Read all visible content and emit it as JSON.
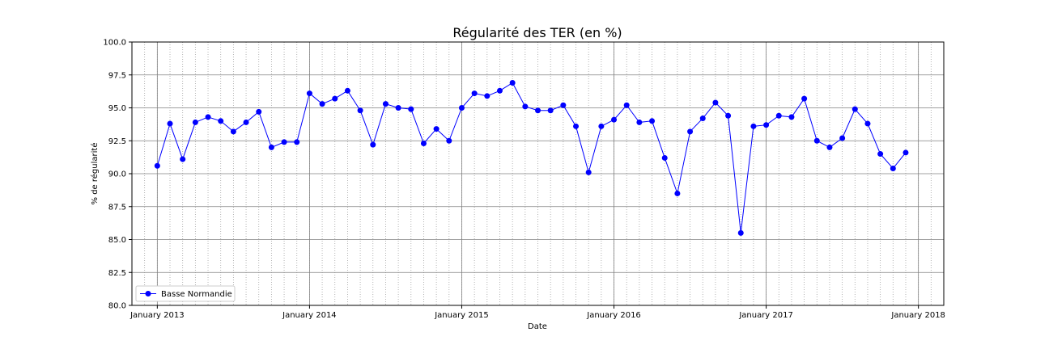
{
  "chart_data": {
    "type": "line",
    "title": "Régularité des TER (en %)",
    "xlabel": "Date",
    "ylabel": "% de régularité",
    "ylim": [
      80.0,
      100.0
    ],
    "xlim": [
      "2012-11",
      "2018-03"
    ],
    "yticks": [
      "80.0",
      "82.5",
      "85.0",
      "87.5",
      "90.0",
      "92.5",
      "95.0",
      "97.5",
      "100.0"
    ],
    "xticks": [
      {
        "date": "2013-01",
        "label": "January 2013"
      },
      {
        "date": "2014-01",
        "label": "January 2014"
      },
      {
        "date": "2015-01",
        "label": "January 2015"
      },
      {
        "date": "2016-01",
        "label": "January 2016"
      },
      {
        "date": "2017-01",
        "label": "January 2017"
      },
      {
        "date": "2018-01",
        "label": "January 2018"
      }
    ],
    "grid": true,
    "minor_grid": "monthly dotted vertical lines",
    "legend_position": "lower-left",
    "color": "#0000ff",
    "series": [
      {
        "name": "Basse Normandie",
        "x": [
          "2013-01",
          "2013-02",
          "2013-03",
          "2013-04",
          "2013-05",
          "2013-06",
          "2013-07",
          "2013-08",
          "2013-09",
          "2013-10",
          "2013-11",
          "2013-12",
          "2014-01",
          "2014-02",
          "2014-03",
          "2014-04",
          "2014-05",
          "2014-06",
          "2014-07",
          "2014-08",
          "2014-09",
          "2014-10",
          "2014-11",
          "2014-12",
          "2015-01",
          "2015-02",
          "2015-03",
          "2015-04",
          "2015-05",
          "2015-06",
          "2015-07",
          "2015-08",
          "2015-09",
          "2015-10",
          "2015-11",
          "2015-12",
          "2016-01",
          "2016-02",
          "2016-03",
          "2016-04",
          "2016-05",
          "2016-06",
          "2016-07",
          "2016-08",
          "2016-09",
          "2016-10",
          "2016-11",
          "2016-12",
          "2017-01",
          "2017-02",
          "2017-03",
          "2017-04",
          "2017-05",
          "2017-06",
          "2017-07",
          "2017-08",
          "2017-09",
          "2017-10",
          "2017-11",
          "2017-12"
        ],
        "values": [
          90.6,
          93.8,
          91.1,
          93.9,
          94.3,
          94.0,
          93.2,
          93.9,
          94.7,
          92.0,
          92.4,
          92.4,
          96.1,
          95.3,
          95.7,
          96.3,
          94.8,
          92.2,
          95.3,
          95.0,
          94.9,
          92.3,
          93.4,
          92.5,
          95.0,
          96.1,
          95.9,
          96.3,
          96.9,
          95.1,
          94.8,
          94.8,
          95.2,
          93.6,
          90.1,
          93.6,
          94.1,
          95.2,
          93.9,
          94.0,
          91.2,
          88.5,
          93.2,
          94.2,
          95.4,
          94.4,
          85.5,
          93.6,
          93.7,
          94.4,
          94.3,
          95.7,
          92.5,
          92.0,
          92.7,
          94.9,
          93.8,
          91.5,
          90.4,
          91.6
        ]
      }
    ]
  }
}
